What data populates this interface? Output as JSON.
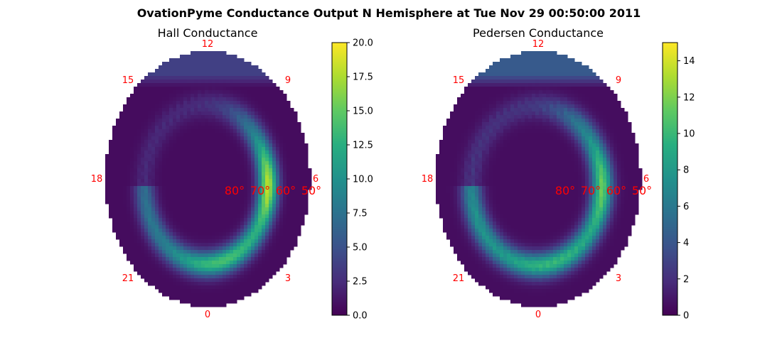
{
  "figure": {
    "title": "OvationPyme Conductance Output N Hemisphere at Tue Nov 29 00:50:00 2011"
  },
  "chart_data": [
    {
      "type": "heatmap",
      "title": "Hall Conductance",
      "projection": "polar, north hemisphere, magnetic local time vs magnetic latitude",
      "mlt_labels": [
        "12",
        "15",
        "9",
        "18",
        "6",
        "21",
        "3",
        "0"
      ],
      "lat_labels": [
        "80°",
        "70°",
        "60°",
        "50°"
      ],
      "colorscale": "viridis",
      "colorbar": {
        "vmin": 0,
        "vmax": 20,
        "ticks": [
          "0.0",
          "2.5",
          "5.0",
          "7.5",
          "10.0",
          "12.5",
          "15.0",
          "17.5",
          "20.0"
        ],
        "tick_values": [
          0,
          2.5,
          5,
          7.5,
          10,
          12.5,
          15,
          17.5,
          20
        ]
      },
      "auroral_oval": {
        "background": 0.6,
        "dayside_cap": 3.8,
        "dusk_peak": 8.0,
        "dawn_peak": 17.5,
        "midnight_peak": 14.0
      }
    },
    {
      "type": "heatmap",
      "title": "Pedersen Conductance",
      "projection": "polar, north hemisphere, magnetic local time vs magnetic latitude",
      "mlt_labels": [
        "12",
        "15",
        "9",
        "18",
        "6",
        "21",
        "3",
        "0"
      ],
      "lat_labels": [
        "80°",
        "70°",
        "60°",
        "50°"
      ],
      "colorscale": "viridis",
      "colorbar": {
        "vmin": 0,
        "vmax": 15,
        "ticks": [
          "0",
          "2",
          "4",
          "6",
          "8",
          "10",
          "12",
          "14"
        ],
        "tick_values": [
          0,
          2,
          4,
          6,
          8,
          10,
          12,
          14
        ]
      },
      "auroral_oval": {
        "background": 0.5,
        "dayside_cap": 4.2,
        "dusk_peak": 8.0,
        "dawn_peak": 11.0,
        "midnight_peak": 9.5
      }
    }
  ]
}
